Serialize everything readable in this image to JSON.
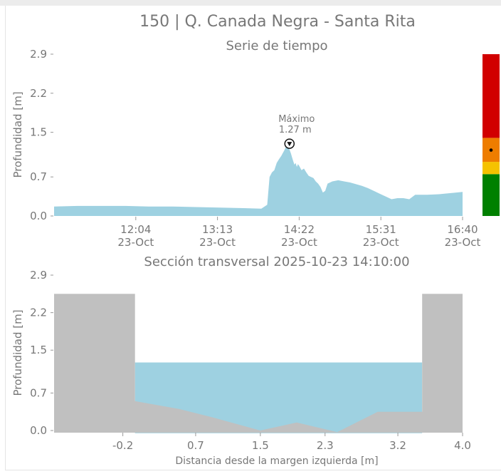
{
  "header": {
    "title": "150 | Q. Canada Negra - Santa Rita"
  },
  "chart_data": [
    {
      "type": "area",
      "title": "Serie de tiempo",
      "xlabel": "",
      "ylabel": "Profundidad [m]",
      "xtick_labels": [
        {
          "time": "12:04",
          "date": "23-Oct"
        },
        {
          "time": "13:13",
          "date": "23-Oct"
        },
        {
          "time": "14:22",
          "date": "23-Oct"
        },
        {
          "time": "15:31",
          "date": "23-Oct"
        },
        {
          "time": "16:40",
          "date": "23-Oct"
        }
      ],
      "ytick_labels": [
        "0.0",
        "0.7",
        "1.5",
        "2.2",
        "2.9"
      ],
      "xlim": [
        "10:55",
        "16:40"
      ],
      "ylim": [
        0,
        2.9
      ],
      "grid": false,
      "color": "#9ed1e1",
      "series": [
        {
          "x": [
            "10:55",
            "11:15",
            "11:35",
            "11:55",
            "12:15",
            "12:35",
            "12:55",
            "13:15",
            "13:35",
            "13:50",
            "13:55",
            "13:57",
            "13:59",
            "14:01",
            "14:03",
            "14:05",
            "14:07",
            "14:08",
            "14:09",
            "14:10",
            "14:11",
            "14:12",
            "14:13",
            "14:14",
            "14:15",
            "14:16",
            "14:17",
            "14:18",
            "14:19",
            "14:20",
            "14:21",
            "14:22",
            "14:24",
            "14:26",
            "14:28",
            "14:30",
            "14:32",
            "14:34",
            "14:36",
            "14:38",
            "14:40",
            "14:42",
            "14:44",
            "14:46",
            "14:50",
            "14:55",
            "15:00",
            "15:05",
            "15:10",
            "15:15",
            "15:20",
            "15:25",
            "15:30",
            "15:35",
            "15:40",
            "15:45",
            "15:50",
            "15:55",
            "16:00",
            "16:10",
            "16:20",
            "16:30",
            "16:40"
          ],
          "y": [
            0.17,
            0.18,
            0.18,
            0.18,
            0.17,
            0.17,
            0.16,
            0.15,
            0.14,
            0.13,
            0.2,
            0.7,
            0.78,
            0.82,
            0.95,
            1.02,
            1.08,
            1.12,
            1.16,
            1.2,
            1.25,
            1.27,
            1.24,
            1.18,
            1.12,
            1.05,
            0.98,
            0.92,
            0.95,
            0.88,
            0.93,
            0.9,
            0.82,
            0.85,
            0.78,
            0.72,
            0.7,
            0.68,
            0.62,
            0.58,
            0.52,
            0.42,
            0.45,
            0.58,
            0.62,
            0.64,
            0.62,
            0.6,
            0.57,
            0.54,
            0.5,
            0.45,
            0.4,
            0.35,
            0.3,
            0.32,
            0.32,
            0.3,
            0.38,
            0.38,
            0.39,
            0.41,
            0.43
          ]
        }
      ],
      "annotations": [
        {
          "x": "14:12",
          "y": 1.27,
          "line1": "Máximo",
          "line2": "1.27 m"
        }
      ],
      "alert_bar": {
        "levels": [
          {
            "from": 0,
            "to": 0.75,
            "color": "#008000"
          },
          {
            "from": 0.75,
            "to": 0.97,
            "color": "#f5c200"
          },
          {
            "from": 0.97,
            "to": 1.4,
            "color": "#ee7d00"
          },
          {
            "from": 1.4,
            "to": 2.9,
            "color": "#d10000"
          }
        ],
        "current_value": 1.27
      }
    },
    {
      "type": "area",
      "title": "Sección transversal 2025-10-23 14:10:00",
      "xlabel": "Distancia desde la margen izquierda [m]",
      "ylabel": "Profundidad [m]",
      "xticks": [
        -0.2,
        0.7,
        1.5,
        2.3,
        3.2,
        4.0
      ],
      "xtick_labels": [
        "-0.2",
        "0.7",
        "1.5",
        "2.3",
        "3.2",
        "4.0"
      ],
      "ytick_labels": [
        "0.0",
        "0.7",
        "1.5",
        "2.2",
        "2.9"
      ],
      "xlim": [
        -1.05,
        4.0
      ],
      "ylim": [
        0,
        2.9
      ],
      "grid": false,
      "water_level": 1.27,
      "water_color": "#9ed1e1",
      "ground_color": "#c0c0c0",
      "bed_profile": {
        "x": [
          -1.05,
          -0.05,
          -0.05,
          0.5,
          0.9,
          1.5,
          1.95,
          2.45,
          2.95,
          3.5,
          3.5,
          4.0
        ],
        "y": [
          2.55,
          2.55,
          0.55,
          0.4,
          0.25,
          0.0,
          0.15,
          -0.03,
          0.35,
          0.35,
          2.55,
          2.55
        ]
      }
    }
  ]
}
